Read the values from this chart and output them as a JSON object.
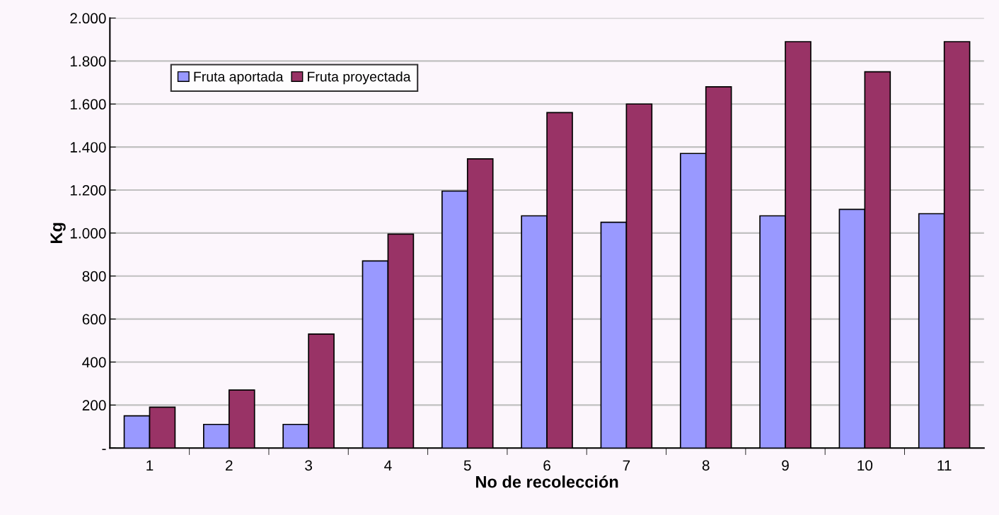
{
  "chart_data": {
    "type": "bar",
    "xlabel": "No de recolección",
    "ylabel": "Kg",
    "categories": [
      "1",
      "2",
      "3",
      "4",
      "5",
      "6",
      "7",
      "8",
      "9",
      "10",
      "11"
    ],
    "series": [
      {
        "name": "Fruta aportada",
        "color": "#9999ff",
        "values": [
          150,
          110,
          110,
          870,
          1195,
          1080,
          1050,
          1370,
          1080,
          1110,
          1090
        ]
      },
      {
        "name": "Fruta proyectada",
        "color": "#993366",
        "values": [
          190,
          270,
          530,
          995,
          1345,
          1560,
          1600,
          1680,
          1890,
          1750,
          1890
        ]
      }
    ],
    "ylim": [
      0,
      2000
    ],
    "yticks": [
      {
        "value": 0,
        "label": "-"
      },
      200,
      400,
      600,
      800,
      {
        "value": 1000,
        "label": "1.000"
      },
      {
        "value": 1200,
        "label": "1.200"
      },
      {
        "value": 1400,
        "label": "1.400"
      },
      {
        "value": 1600,
        "label": "1.600"
      },
      {
        "value": 1800,
        "label": "1.800"
      },
      {
        "value": 2000,
        "label": "2.000"
      }
    ],
    "grid": "y",
    "legend": "top left"
  }
}
